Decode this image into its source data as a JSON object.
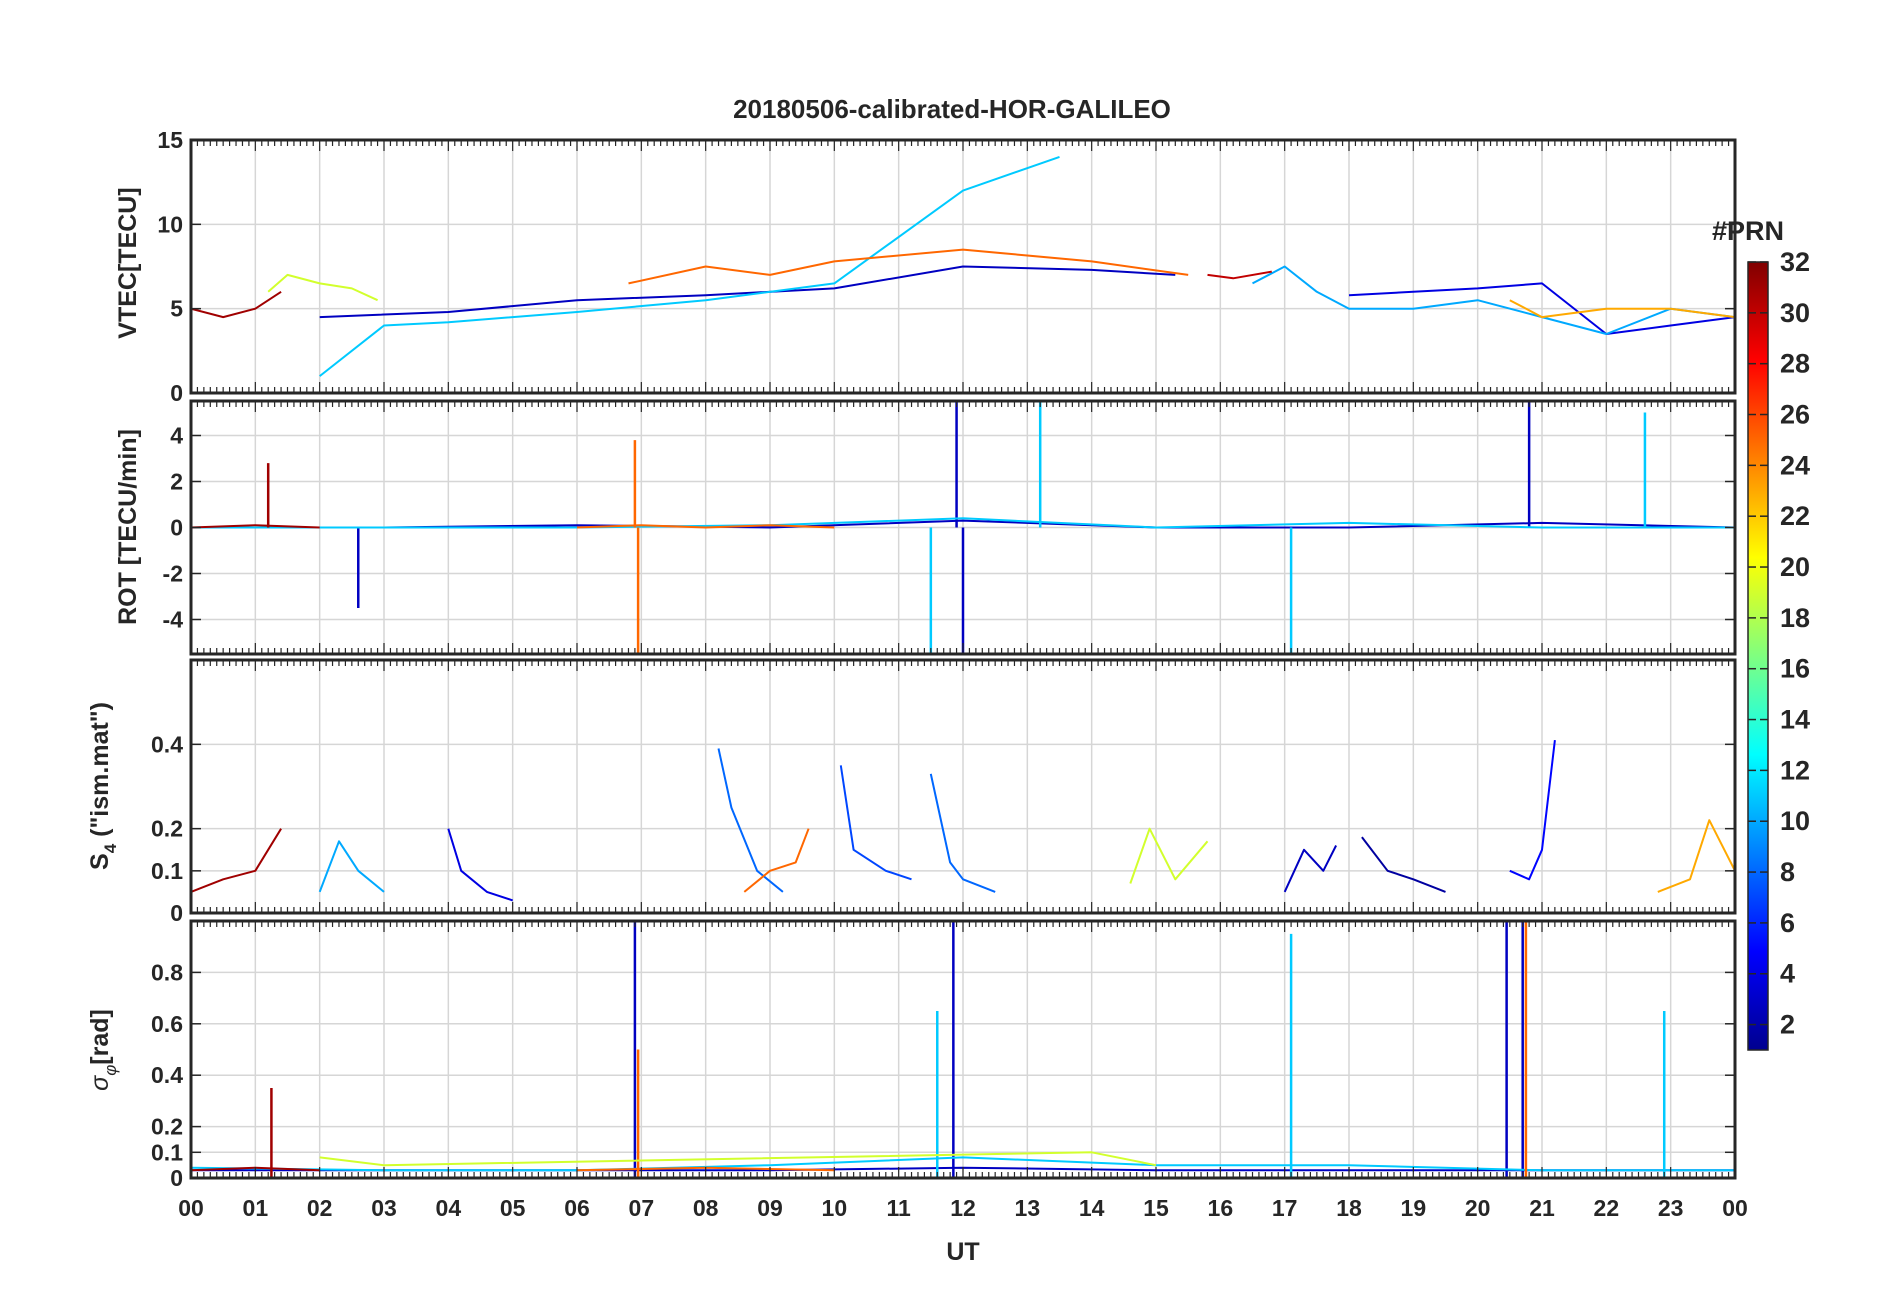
{
  "figure_title": "20180506-calibrated-HOR-GALILEO",
  "x_axis_label": "UT",
  "x_tick_labels": [
    "00",
    "01",
    "02",
    "03",
    "04",
    "05",
    "06",
    "07",
    "08",
    "09",
    "10",
    "11",
    "12",
    "13",
    "14",
    "15",
    "16",
    "17",
    "18",
    "19",
    "20",
    "21",
    "22",
    "23",
    "00"
  ],
  "colorbar": {
    "title": "#PRN",
    "range": [
      1,
      32
    ],
    "tick_values": [
      2,
      4,
      6,
      8,
      10,
      12,
      14,
      16,
      18,
      20,
      22,
      24,
      26,
      28,
      30,
      32
    ],
    "tick_labels": [
      "2",
      "4",
      "6",
      "8",
      "10",
      "12",
      "14",
      "16",
      "18",
      "20",
      "22",
      "24",
      "26",
      "28",
      "30",
      "32"
    ],
    "colormap": "jet"
  },
  "chart_data": [
    {
      "type": "line",
      "panel": "VTEC",
      "ylabel": "VTEC[TECU]",
      "xlim": [
        0,
        24
      ],
      "ylim": [
        0,
        15
      ],
      "yticks": [
        0,
        5,
        10,
        15
      ],
      "ytick_labels": [
        "0",
        "5",
        "10",
        "15"
      ],
      "grid": true,
      "series": [
        {
          "prn": 3,
          "x": [
            2.0,
            4.0,
            6.0,
            8.0,
            10.0,
            12.0,
            14.0,
            15.3
          ],
          "y": [
            4.5,
            4.8,
            5.5,
            5.8,
            6.2,
            7.5,
            7.3,
            7.0
          ]
        },
        {
          "prn": 11,
          "x": [
            2.0,
            3.0,
            4.0,
            6.0,
            8.0,
            10.0,
            12.0,
            13.5
          ],
          "y": [
            1.0,
            4.0,
            4.2,
            4.8,
            5.5,
            6.5,
            12.0,
            14.0
          ]
        },
        {
          "prn": 19,
          "x": [
            1.2,
            1.5,
            2.0,
            2.5,
            2.9
          ],
          "y": [
            6.0,
            7.0,
            6.5,
            6.2,
            5.5
          ]
        },
        {
          "prn": 25,
          "x": [
            6.8,
            8.0,
            9.0,
            10.0,
            12.0,
            14.0,
            15.5
          ],
          "y": [
            6.5,
            7.5,
            7.0,
            7.8,
            8.5,
            7.8,
            7.0
          ]
        },
        {
          "prn": 31,
          "x": [
            0.0,
            0.5,
            1.0,
            1.4
          ],
          "y": [
            5.0,
            4.5,
            5.0,
            6.0
          ]
        },
        {
          "prn": 4,
          "x": [
            18.0,
            19.0,
            20.0,
            21.0,
            22.0,
            23.0,
            24.0
          ],
          "y": [
            5.8,
            6.0,
            6.2,
            6.5,
            3.5,
            4.0,
            4.5
          ]
        },
        {
          "prn": 10,
          "x": [
            16.5,
            17.0,
            17.5,
            18.0,
            19.0,
            20.0,
            21.0,
            22.0,
            23.0,
            24.0
          ],
          "y": [
            6.5,
            7.5,
            6.0,
            5.0,
            5.0,
            5.5,
            4.5,
            3.5,
            5.0,
            4.5
          ]
        },
        {
          "prn": 23,
          "x": [
            20.5,
            21.0,
            22.0,
            23.0,
            24.0
          ],
          "y": [
            5.5,
            4.5,
            5.0,
            5.0,
            4.5
          ]
        },
        {
          "prn": 30,
          "x": [
            15.8,
            16.2,
            16.8
          ],
          "y": [
            7.0,
            6.8,
            7.2
          ]
        }
      ]
    },
    {
      "type": "line",
      "panel": "ROT",
      "ylabel": "ROT [TECU/min]",
      "xlim": [
        0,
        24
      ],
      "ylim": [
        -5.5,
        5.5
      ],
      "yticks": [
        -4,
        -2,
        0,
        2,
        4
      ],
      "ytick_labels": [
        "-4",
        "-2",
        "0",
        "2",
        "4"
      ],
      "grid": true,
      "series": [
        {
          "prn": 3,
          "x": [
            0,
            3,
            6,
            9,
            12,
            15,
            18,
            21,
            24
          ],
          "y": [
            0,
            0,
            0.1,
            0,
            0.3,
            0,
            0,
            0.2,
            0
          ],
          "spikes": [
            {
              "x": 2.6,
              "y": -3.5
            },
            {
              "x": 11.9,
              "y": 5.5
            },
            {
              "x": 12.0,
              "y": -5.5
            },
            {
              "x": 20.8,
              "y": 5.5
            }
          ]
        },
        {
          "prn": 11,
          "x": [
            0,
            3,
            6,
            9,
            12,
            15,
            18,
            21,
            24
          ],
          "y": [
            0,
            0,
            0,
            0.1,
            0.4,
            0,
            0.2,
            0,
            0
          ],
          "spikes": [
            {
              "x": 11.5,
              "y": -5.5
            },
            {
              "x": 13.2,
              "y": 5.5
            },
            {
              "x": 17.1,
              "y": -5.5
            },
            {
              "x": 22.6,
              "y": 5.0
            }
          ]
        },
        {
          "prn": 25,
          "x": [
            6,
            7,
            8,
            9,
            10
          ],
          "y": [
            0,
            0.1,
            0,
            0.1,
            0
          ],
          "spikes": [
            {
              "x": 6.9,
              "y": 3.8
            },
            {
              "x": 6.95,
              "y": -5.5
            }
          ]
        },
        {
          "prn": 31,
          "x": [
            0,
            1,
            2
          ],
          "y": [
            0,
            0.1,
            0
          ],
          "spikes": [
            {
              "x": 1.2,
              "y": 2.8
            }
          ]
        }
      ]
    },
    {
      "type": "line",
      "panel": "S4",
      "ylabel": "S4 (\"ism.mat\")",
      "ylabel_main": "S",
      "ylabel_sub": "4",
      "ylabel_rest": " (\"ism.mat\")",
      "xlim": [
        0,
        24
      ],
      "ylim": [
        0,
        0.6
      ],
      "yticks": [
        0,
        0.1,
        0.2,
        0.4
      ],
      "ytick_labels": [
        "0",
        "0.1",
        "0.2",
        "0.4"
      ],
      "grid": true,
      "series": [
        {
          "prn": 31,
          "x": [
            0.0,
            0.5,
            1.0,
            1.4
          ],
          "y": [
            0.05,
            0.08,
            0.1,
            0.2
          ]
        },
        {
          "prn": 10,
          "x": [
            2.0,
            2.3,
            2.6,
            3.0
          ],
          "y": [
            0.05,
            0.17,
            0.1,
            0.05
          ]
        },
        {
          "prn": 4,
          "x": [
            4.0,
            4.2,
            4.6,
            5.0
          ],
          "y": [
            0.2,
            0.1,
            0.05,
            0.03
          ]
        },
        {
          "prn": 8,
          "x": [
            8.2,
            8.4,
            8.8,
            9.2
          ],
          "y": [
            0.39,
            0.25,
            0.1,
            0.05
          ]
        },
        {
          "prn": 25,
          "x": [
            8.6,
            9.0,
            9.4,
            9.6
          ],
          "y": [
            0.05,
            0.1,
            0.12,
            0.2
          ]
        },
        {
          "prn": 7,
          "x": [
            10.1,
            10.3,
            10.8,
            11.2
          ],
          "y": [
            0.35,
            0.15,
            0.1,
            0.08
          ]
        },
        {
          "prn": 8,
          "x": [
            11.5,
            11.8,
            12.0,
            12.5
          ],
          "y": [
            0.33,
            0.12,
            0.08,
            0.05
          ]
        },
        {
          "prn": 19,
          "x": [
            14.6,
            14.9,
            15.3,
            15.8
          ],
          "y": [
            0.07,
            0.2,
            0.08,
            0.17
          ]
        },
        {
          "prn": 3,
          "x": [
            17.0,
            17.3,
            17.6,
            17.8
          ],
          "y": [
            0.05,
            0.15,
            0.1,
            0.16
          ]
        },
        {
          "prn": 2,
          "x": [
            18.2,
            18.6,
            19.0,
            19.5
          ],
          "y": [
            0.18,
            0.1,
            0.08,
            0.05
          ]
        },
        {
          "prn": 5,
          "x": [
            20.5,
            20.8,
            21.0,
            21.2
          ],
          "y": [
            0.1,
            0.08,
            0.15,
            0.41
          ]
        },
        {
          "prn": 23,
          "x": [
            22.8,
            23.3,
            23.6,
            24.0
          ],
          "y": [
            0.05,
            0.08,
            0.22,
            0.1
          ]
        }
      ]
    },
    {
      "type": "line",
      "panel": "sigma_phi",
      "ylabel": "σφ[rad]",
      "ylabel_main": "σ",
      "ylabel_sub": "φ",
      "ylabel_rest": "[rad]",
      "xlim": [
        0,
        24
      ],
      "ylim": [
        0,
        1.0
      ],
      "yticks": [
        0,
        0.1,
        0.2,
        0.4,
        0.6,
        0.8
      ],
      "ytick_labels": [
        "0",
        "0.1",
        "0.2",
        "0.4",
        "0.6",
        "0.8"
      ],
      "grid": true,
      "series": [
        {
          "prn": 3,
          "x": [
            0,
            3,
            6,
            9,
            12,
            15,
            18,
            21,
            24
          ],
          "y": [
            0.03,
            0.03,
            0.03,
            0.03,
            0.04,
            0.03,
            0.03,
            0.03,
            0.03
          ],
          "spikes": [
            {
              "x": 6.9,
              "y": 1.0
            },
            {
              "x": 11.85,
              "y": 1.0
            },
            {
              "x": 20.45,
              "y": 1.0
            },
            {
              "x": 20.7,
              "y": 1.0
            }
          ]
        },
        {
          "prn": 11,
          "x": [
            0,
            3,
            6,
            9,
            12,
            15,
            18,
            21,
            24
          ],
          "y": [
            0.04,
            0.03,
            0.03,
            0.05,
            0.08,
            0.05,
            0.05,
            0.03,
            0.03
          ],
          "spikes": [
            {
              "x": 11.6,
              "y": 0.65
            },
            {
              "x": 17.1,
              "y": 0.95
            },
            {
              "x": 22.9,
              "y": 0.65
            }
          ]
        },
        {
          "prn": 31,
          "x": [
            0,
            1,
            2
          ],
          "y": [
            0.03,
            0.04,
            0.03
          ],
          "spikes": [
            {
              "x": 1.25,
              "y": 0.35
            }
          ]
        },
        {
          "prn": 25,
          "x": [
            6,
            8,
            10
          ],
          "y": [
            0.03,
            0.04,
            0.03
          ],
          "spikes": [
            {
              "x": 6.95,
              "y": 0.5
            },
            {
              "x": 20.75,
              "y": 1.0
            }
          ]
        },
        {
          "prn": 19,
          "x": [
            2,
            3,
            14,
            15
          ],
          "y": [
            0.08,
            0.05,
            0.1,
            0.05
          ]
        }
      ]
    }
  ]
}
